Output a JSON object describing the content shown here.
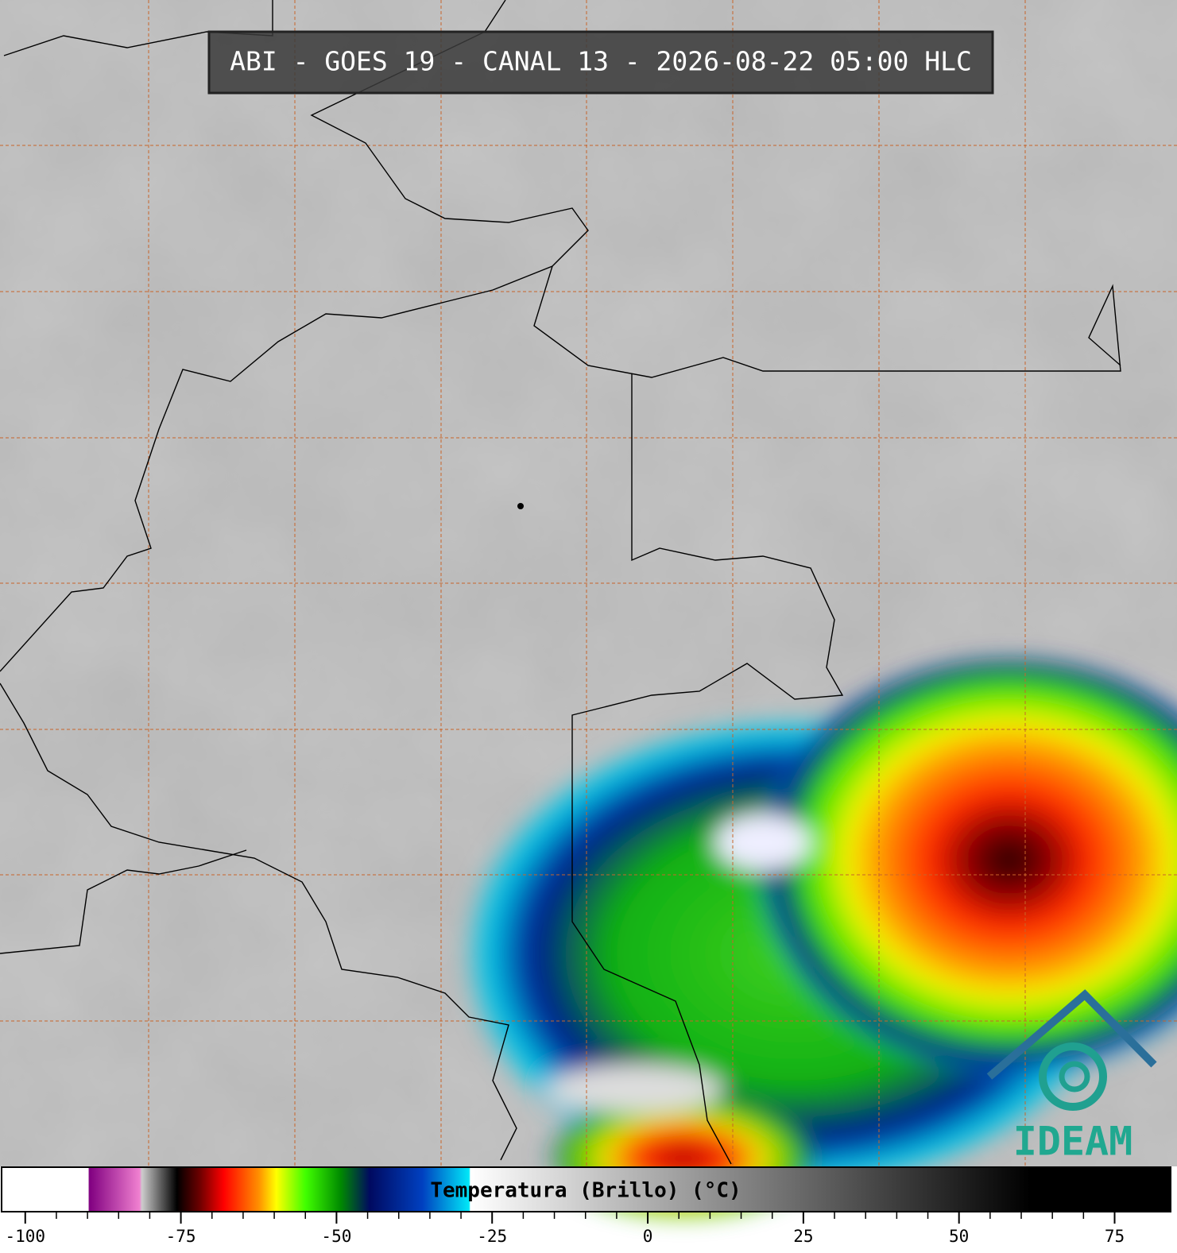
{
  "header": {
    "title": "ABI - GOES 19 - CANAL 13 - 2026-08-22 05:00 HLC"
  },
  "colorbar": {
    "label": "Temperatura (Brillo) (°C)",
    "xlim": [
      -103.8,
      84
    ],
    "xticks": [
      -100,
      -75,
      -50,
      -25,
      0,
      25,
      50,
      75
    ]
  },
  "logo": {
    "text": "IDEAM"
  }
}
